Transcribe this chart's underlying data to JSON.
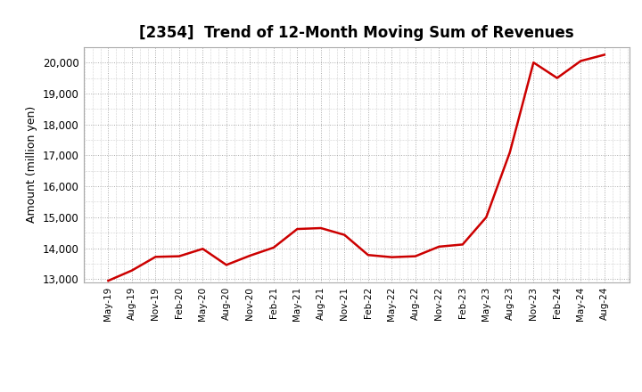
{
  "title": "[2354]  Trend of 12-Month Moving Sum of Revenues",
  "ylabel": "Amount (million yen)",
  "line_color": "#cc0000",
  "background_color": "#ffffff",
  "plot_bg_color": "#ffffff",
  "grid_color": "#aaaaaa",
  "ylim": [
    12900,
    20500
  ],
  "yticks": [
    13000,
    14000,
    15000,
    16000,
    17000,
    18000,
    19000,
    20000
  ],
  "x_labels": [
    "May-19",
    "Aug-19",
    "Nov-19",
    "Feb-20",
    "May-20",
    "Aug-20",
    "Nov-20",
    "Feb-21",
    "May-21",
    "Aug-21",
    "Nov-21",
    "Feb-22",
    "May-22",
    "Aug-22",
    "Nov-22",
    "Feb-23",
    "May-23",
    "Aug-23",
    "Nov-23",
    "Feb-24",
    "May-24",
    "Aug-24"
  ],
  "values": [
    12950,
    13280,
    13720,
    13740,
    13980,
    13460,
    13760,
    14020,
    14620,
    14650,
    14430,
    13780,
    13710,
    13740,
    14050,
    14120,
    15000,
    17100,
    20000,
    19500,
    20050,
    20250
  ],
  "title_fontsize": 12,
  "ylabel_fontsize": 9,
  "tick_fontsize": 8.5,
  "xtick_fontsize": 7.5,
  "line_width": 1.8
}
